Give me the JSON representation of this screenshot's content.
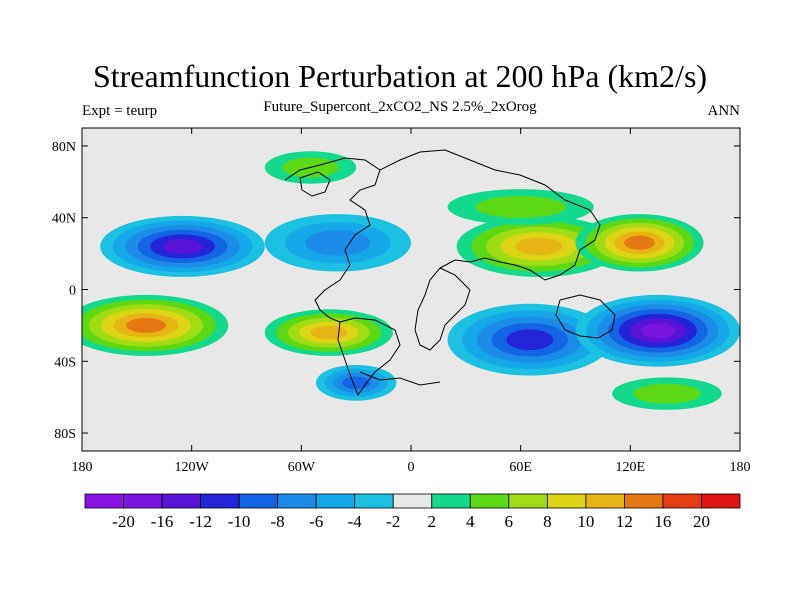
{
  "title": "Streamfunction Perturbation at 200 hPa (km2/s)",
  "subtitle": "Future_Supercont_2xCO2_NS 2.5%_2xOrog",
  "left_label": "Expt = teurp",
  "right_label": "ANN",
  "colors": {
    "background_field": "#e8e8e8",
    "coast": "#000000",
    "levels": [
      "#8a14e6",
      "#7a14e0",
      "#5a14d8",
      "#2424d8",
      "#1464e6",
      "#1c8ce8",
      "#14a8e8",
      "#1cc0e0",
      "#e8e8e8",
      "#14d88c",
      "#5cd814",
      "#a0dc14",
      "#dcd414",
      "#e6b414",
      "#e67814",
      "#e63c14",
      "#e01414"
    ]
  },
  "chart_data": {
    "type": "contour-map",
    "title": "Streamfunction Perturbation at 200 hPa (km2/s)",
    "xlim": [
      -180,
      180
    ],
    "ylim": [
      -90,
      90
    ],
    "x_ticks": [
      {
        "value": -180,
        "label": "180"
      },
      {
        "value": -120,
        "label": "120W"
      },
      {
        "value": -60,
        "label": "60W"
      },
      {
        "value": 0,
        "label": "0"
      },
      {
        "value": 60,
        "label": "60E"
      },
      {
        "value": 120,
        "label": "120E"
      },
      {
        "value": 180,
        "label": "180"
      }
    ],
    "y_ticks": [
      {
        "value": 80,
        "label": "80N"
      },
      {
        "value": 40,
        "label": "40N"
      },
      {
        "value": 0,
        "label": "0"
      },
      {
        "value": -40,
        "label": "40S"
      },
      {
        "value": -80,
        "label": "80S"
      }
    ],
    "colorbar_labels": [
      "-20",
      "-16",
      "-12",
      "-10",
      "-8",
      "-6",
      "-4",
      "-2",
      "2",
      "4",
      "6",
      "8",
      "10",
      "12",
      "16",
      "20"
    ],
    "features": [
      {
        "lon": -125,
        "lat": 24,
        "rx": 45,
        "ry": 17,
        "value": -12
      },
      {
        "lon": -40,
        "lat": 26,
        "rx": 40,
        "ry": 16,
        "value": -7
      },
      {
        "lon": -145,
        "lat": -20,
        "rx": 45,
        "ry": 17,
        "value": 14
      },
      {
        "lon": -45,
        "lat": -24,
        "rx": 35,
        "ry": 13,
        "value": 10
      },
      {
        "lon": 70,
        "lat": 24,
        "rx": 45,
        "ry": 17,
        "value": 10
      },
      {
        "lon": 125,
        "lat": 26,
        "rx": 35,
        "ry": 16,
        "value": 12
      },
      {
        "lon": 65,
        "lat": -28,
        "rx": 45,
        "ry": 20,
        "value": -10
      },
      {
        "lon": 135,
        "lat": -23,
        "rx": 45,
        "ry": 20,
        "value": -16
      },
      {
        "lon": -30,
        "lat": -52,
        "rx": 22,
        "ry": 10,
        "value": -9
      },
      {
        "lon": -55,
        "lat": 68,
        "rx": 25,
        "ry": 9,
        "value": 4
      },
      {
        "lon": 60,
        "lat": 46,
        "rx": 40,
        "ry": 10,
        "value": 4
      },
      {
        "lon": 140,
        "lat": -58,
        "rx": 30,
        "ry": 9,
        "value": 5
      }
    ]
  }
}
